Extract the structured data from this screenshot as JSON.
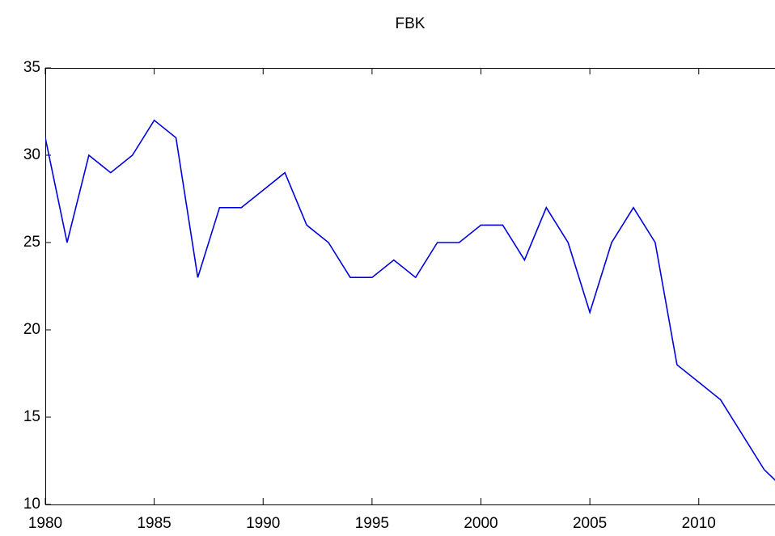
{
  "chart_data": {
    "type": "line",
    "title": "FBK",
    "x": [
      1980,
      1981,
      1982,
      1983,
      1984,
      1985,
      1986,
      1987,
      1988,
      1989,
      1990,
      1991,
      1992,
      1993,
      1994,
      1995,
      1996,
      1997,
      1998,
      1999,
      2000,
      2001,
      2002,
      2003,
      2004,
      2005,
      2006,
      2007,
      2008,
      2009,
      2010,
      2011,
      2012,
      2013,
      2014
    ],
    "series": [
      {
        "name": "FBK",
        "color": "#0000dd",
        "values": [
          31,
          25,
          30,
          29,
          30,
          32,
          31,
          23,
          27,
          27,
          28,
          29,
          26,
          25,
          23,
          23,
          24,
          23,
          25,
          25,
          26,
          26,
          24,
          27,
          25,
          21,
          25,
          27,
          25,
          18,
          17,
          16,
          14,
          12,
          10.8
        ]
      }
    ],
    "xlim": [
      1980,
      2013.5
    ],
    "xticks": [
      1980,
      1985,
      1990,
      1995,
      2000,
      2005,
      2010
    ],
    "ylim": [
      10,
      35
    ],
    "yticks": [
      10,
      15,
      20,
      25,
      30,
      35
    ]
  }
}
